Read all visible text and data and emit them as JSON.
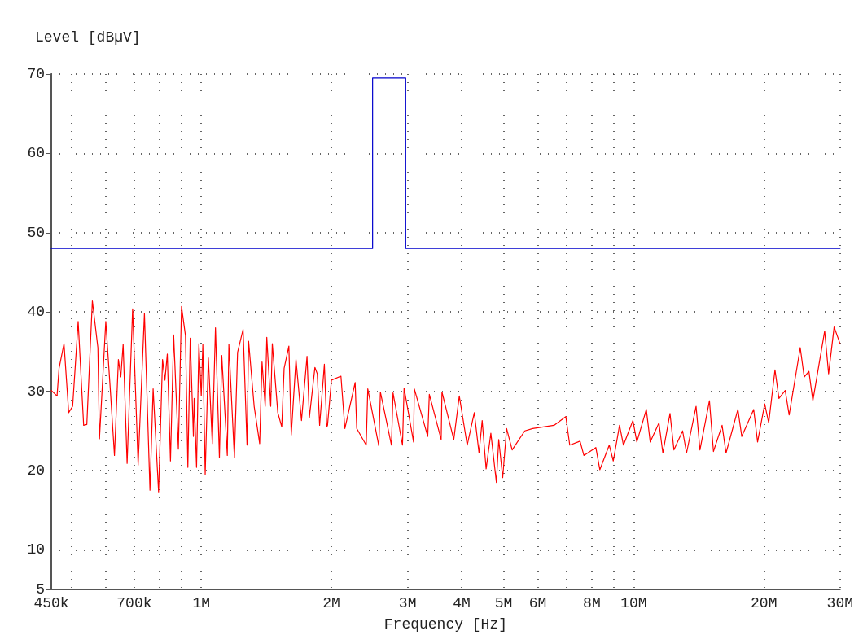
{
  "chart_data": {
    "type": "line",
    "xlabel": "Frequency [Hz]",
    "ylabel": "Level [dBµV]",
    "log": "x",
    "grid": true,
    "marker": "none",
    "line_style": "solid",
    "xlim": [
      450000,
      30000000
    ],
    "xticks": [
      {
        "value": 450000,
        "label": "450k"
      },
      {
        "value": 500000,
        "label": null
      },
      {
        "value": 600000,
        "label": null
      },
      {
        "value": 700000,
        "label": "700k"
      },
      {
        "value": 800000,
        "label": null
      },
      {
        "value": 900000,
        "label": null
      },
      {
        "value": 1000000,
        "label": "1M"
      },
      {
        "value": 2000000,
        "label": "2M"
      },
      {
        "value": 3000000,
        "label": "3M"
      },
      {
        "value": 4000000,
        "label": "4M"
      },
      {
        "value": 5000000,
        "label": "5M"
      },
      {
        "value": 6000000,
        "label": "6M"
      },
      {
        "value": 7000000,
        "label": null
      },
      {
        "value": 8000000,
        "label": "8M"
      },
      {
        "value": 9000000,
        "label": null
      },
      {
        "value": 10000000,
        "label": "10M"
      },
      {
        "value": 20000000,
        "label": "20M"
      },
      {
        "value": 30000000,
        "label": "30M"
      }
    ],
    "ylim": [
      5,
      70
    ],
    "yticks": [
      5,
      10,
      20,
      30,
      40,
      50,
      60,
      70
    ],
    "series": [
      {
        "color": "#0000cc",
        "x": [
          450000,
          2490000,
          2490000,
          2970000,
          2970000,
          30000000
        ],
        "values": [
          48,
          48,
          69.5,
          69.5,
          48,
          48
        ]
      },
      {
        "color": "#ff0000",
        "x": [
          450000,
          464000,
          469000,
          481500,
          493700,
          504200,
          519200,
          534600,
          543700,
          560000,
          576700,
          581600,
          601500,
          616800,
          629900,
          643300,
          651500,
          659700,
          673800,
          693900,
          714500,
          738900,
          761000,
          773900,
          796700,
          813700,
          824100,
          834600,
          848800,
          863300,
          885200,
          900200,
          919400,
          931100,
          943000,
          959000,
          963000,
          975200,
          987400,
          1000000,
          1008400,
          1021200,
          1038500,
          1060600,
          1078600,
          1101400,
          1115400,
          1148700,
          1158400,
          1193000,
          1213200,
          1249400,
          1276000,
          1286700,
          1325300,
          1364800,
          1382100,
          1405500,
          1417400,
          1447400,
          1459700,
          1503200,
          1535100,
          1554600,
          1594400,
          1614600,
          1655800,
          1705200,
          1756100,
          1778300,
          1831400,
          1854600,
          1878100,
          1926100,
          1950500,
          1958700,
          2000000,
          2103800,
          2148500,
          2269200,
          2288300,
          2406600,
          2426900,
          2574000,
          2595700,
          2753000,
          2776200,
          2919800,
          2944400,
          3096700,
          3109700,
          3339900,
          3368100,
          3587400,
          3602500,
          3836600,
          3951100,
          4120700,
          4279500,
          4388600,
          4463000,
          4557800,
          4674100,
          4813500,
          4874600,
          4978000,
          5083600,
          5235400,
          5599000,
          5839500,
          6542900,
          6966700,
          7114500,
          7514600,
          7670000,
          8174600,
          8350000,
          8779900,
          8970000,
          9272700,
          9470000,
          9958000,
          10170000,
          10695000,
          10920000,
          11440000,
          11680000,
          12133000,
          12390000,
          12976000,
          13250000,
          13939000,
          14230000,
          14968000,
          15290000,
          16010000,
          16350000,
          17415000,
          17780000,
          18943000,
          19340000,
          20090000,
          20520000,
          21218000,
          21670000,
          22408000,
          22880000,
          24272000,
          24790000,
          25421000,
          25960000,
          27643000,
          28230000,
          29072000,
          30000000
        ],
        "values": [
          30.1,
          29.4,
          32.9,
          36.0,
          27.3,
          28.1,
          38.8,
          25.7,
          25.8,
          41.4,
          35.5,
          24.0,
          38.8,
          29.8,
          21.9,
          34.0,
          31.8,
          35.9,
          20.9,
          40.4,
          20.7,
          39.8,
          17.5,
          30.3,
          17.3,
          34.0,
          31.4,
          34.7,
          21.2,
          37.1,
          22.7,
          40.7,
          37.0,
          20.4,
          36.7,
          24.3,
          29.1,
          20.4,
          36.0,
          29.4,
          35.9,
          19.5,
          34.2,
          23.4,
          38.0,
          21.6,
          34.5,
          21.9,
          35.9,
          21.6,
          34.9,
          37.8,
          23.2,
          36.3,
          28.1,
          23.4,
          33.7,
          28.1,
          36.8,
          28.1,
          36.0,
          27.3,
          25.5,
          32.9,
          35.7,
          24.5,
          34.0,
          26.3,
          34.4,
          26.7,
          33.0,
          32.2,
          25.7,
          33.4,
          25.5,
          25.7,
          31.4,
          31.9,
          25.3,
          31.1,
          25.3,
          23.2,
          30.3,
          23.1,
          29.9,
          23.2,
          29.8,
          23.2,
          30.4,
          23.6,
          30.3,
          24.3,
          29.6,
          23.9,
          29.9,
          23.9,
          29.4,
          23.2,
          27.3,
          22.2,
          26.3,
          20.2,
          24.7,
          18.5,
          23.9,
          19.1,
          25.3,
          22.6,
          25.0,
          25.3,
          25.7,
          26.8,
          23.2,
          23.7,
          21.9,
          22.9,
          20.1,
          23.2,
          21.2,
          25.7,
          23.2,
          26.3,
          23.6,
          27.7,
          23.6,
          26.0,
          22.2,
          27.2,
          22.6,
          25.0,
          22.2,
          28.1,
          22.6,
          28.8,
          22.4,
          25.7,
          22.2,
          27.7,
          24.3,
          27.7,
          23.6,
          28.4,
          26.0,
          32.7,
          29.1,
          30.1,
          27.0,
          35.5,
          31.8,
          32.5,
          28.8,
          37.6,
          32.2,
          38.1,
          36.0
        ]
      }
    ]
  }
}
